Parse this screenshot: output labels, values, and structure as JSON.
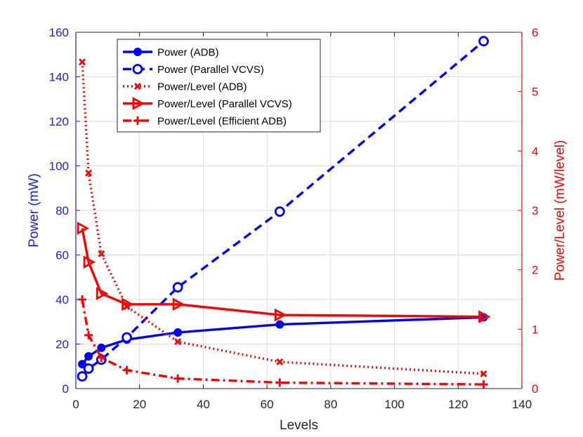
{
  "chart_data": {
    "type": "line",
    "title": "",
    "xlabel": "Levels",
    "ylabel_left": "Power (mW)",
    "ylabel_right": "Power/Level (mW/level)",
    "xlim": [
      0,
      140
    ],
    "ylim_left": [
      0,
      160
    ],
    "ylim_right": [
      0,
      6
    ],
    "xticks": [
      0,
      20,
      40,
      60,
      80,
      100,
      120,
      140
    ],
    "yticks_left": [
      0,
      20,
      40,
      60,
      80,
      100,
      120,
      140,
      160
    ],
    "yticks_right": [
      0,
      1,
      2,
      3,
      4,
      5,
      6
    ],
    "grid": true,
    "legend_position": "top-left",
    "colors": {
      "left_axis": "#1a1aff",
      "right_axis": "#ff0000",
      "grid": "#d9d9f2"
    },
    "series": [
      {
        "name": "Power (ADB)",
        "axis": "left",
        "color": "#0000ff",
        "style": "solid",
        "marker": "filled-circle",
        "x": [
          2,
          4,
          8,
          16,
          32,
          64,
          128
        ],
        "y": [
          11,
          14.5,
          18.3,
          22,
          25.2,
          28.8,
          32
        ]
      },
      {
        "name": "Power (Parallel VCVS)",
        "axis": "left",
        "color": "#0000ff",
        "style": "dashed",
        "marker": "open-circle",
        "x": [
          2,
          4,
          8,
          16,
          32,
          64,
          128
        ],
        "y": [
          5.5,
          9,
          13,
          23,
          45.5,
          79.5,
          156
        ]
      },
      {
        "name": "Power/Level (ADB)",
        "axis": "right",
        "color": "#ff0000",
        "style": "dotted",
        "marker": "x",
        "x": [
          2,
          4,
          8,
          16,
          32,
          64,
          128
        ],
        "y": [
          5.5,
          3.63,
          2.27,
          1.38,
          0.79,
          0.45,
          0.25
        ]
      },
      {
        "name": "Power/Level (Parallel VCVS)",
        "axis": "right",
        "color": "#ff0000",
        "style": "solid",
        "marker": "triangle-right",
        "x": [
          2,
          4,
          8,
          16,
          32,
          64,
          128
        ],
        "y": [
          2.7,
          2.13,
          1.6,
          1.42,
          1.42,
          1.24,
          1.21
        ]
      },
      {
        "name": "Power/Level (Efficient ADB)",
        "axis": "right",
        "color": "#ff0000",
        "style": "dashdot",
        "marker": "plus",
        "x": [
          2,
          4,
          8,
          16,
          32,
          64,
          128
        ],
        "y": [
          1.5,
          0.9,
          0.52,
          0.31,
          0.17,
          0.1,
          0.07
        ]
      }
    ]
  }
}
